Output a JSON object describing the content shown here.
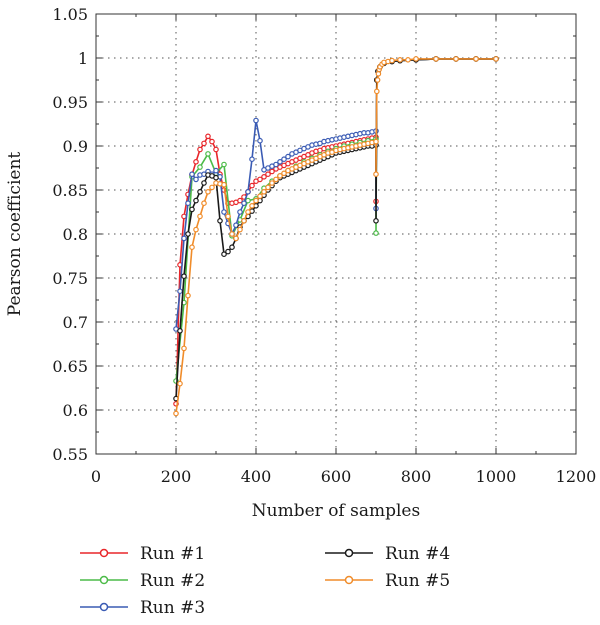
{
  "chart_data": {
    "type": "line",
    "xlabel": "Number of samples",
    "ylabel": "Pearson coefficient",
    "xlim": [
      0,
      1200
    ],
    "ylim": [
      0.55,
      1.05
    ],
    "xticks": [
      0,
      200,
      400,
      600,
      800,
      1000,
      1200
    ],
    "yticks": [
      0.55,
      0.6,
      0.65,
      0.7,
      0.75,
      0.8,
      0.85,
      0.9,
      0.95,
      1,
      1.05
    ],
    "grid": true,
    "legend_position": "bottom",
    "series": [
      {
        "name": "Run #1",
        "color": "#e8262a",
        "x": [
          200,
          210,
          220,
          230,
          240,
          250,
          260,
          270,
          280,
          290,
          300,
          310,
          320,
          330,
          340,
          350,
          360,
          370,
          380,
          390,
          400,
          410,
          420,
          430,
          440,
          450,
          460,
          470,
          480,
          490,
          500,
          510,
          520,
          530,
          540,
          550,
          560,
          570,
          580,
          590,
          600,
          610,
          620,
          630,
          640,
          650,
          660,
          670,
          680,
          690,
          700,
          700,
          702,
          705,
          710,
          720,
          740,
          760,
          800,
          850,
          900,
          950,
          1000
        ],
        "y": [
          0.607,
          0.765,
          0.82,
          0.845,
          0.867,
          0.882,
          0.896,
          0.903,
          0.911,
          0.905,
          0.896,
          0.868,
          0.85,
          0.835,
          0.835,
          0.836,
          0.838,
          0.842,
          0.848,
          0.855,
          0.86,
          0.862,
          0.865,
          0.868,
          0.871,
          0.874,
          0.876,
          0.878,
          0.88,
          0.882,
          0.884,
          0.886,
          0.888,
          0.89,
          0.892,
          0.894,
          0.895,
          0.897,
          0.898,
          0.899,
          0.9,
          0.901,
          0.902,
          0.903,
          0.904,
          0.905,
          0.906,
          0.907,
          0.908,
          0.909,
          0.91,
          0.837,
          0.975,
          0.985,
          0.99,
          0.994,
          0.996,
          0.997,
          0.998,
          0.999,
          0.999,
          0.999,
          0.999
        ]
      },
      {
        "name": "Run #2",
        "color": "#4cbb48",
        "x": [
          200,
          220,
          240,
          260,
          280,
          300,
          320,
          340,
          360,
          380,
          400,
          420,
          440,
          460,
          480,
          500,
          520,
          540,
          560,
          580,
          600,
          620,
          640,
          660,
          680,
          700,
          700,
          702,
          705,
          710,
          720,
          740,
          760,
          800,
          850,
          900,
          950,
          1000
        ],
        "y": [
          0.633,
          0.722,
          0.865,
          0.876,
          0.891,
          0.869,
          0.879,
          0.798,
          0.816,
          0.838,
          0.84,
          0.852,
          0.86,
          0.866,
          0.872,
          0.877,
          0.882,
          0.886,
          0.89,
          0.894,
          0.897,
          0.9,
          0.902,
          0.904,
          0.906,
          0.908,
          0.801,
          0.975,
          0.985,
          0.99,
          0.994,
          0.996,
          0.997,
          0.998,
          0.999,
          0.999,
          0.999,
          0.999
        ]
      },
      {
        "name": "Run #3",
        "color": "#3a5bb4",
        "x": [
          200,
          210,
          220,
          230,
          240,
          250,
          260,
          270,
          280,
          290,
          300,
          310,
          320,
          330,
          340,
          350,
          360,
          370,
          380,
          390,
          400,
          410,
          420,
          430,
          440,
          450,
          460,
          470,
          480,
          490,
          500,
          510,
          520,
          530,
          540,
          550,
          560,
          570,
          580,
          590,
          600,
          610,
          620,
          630,
          640,
          650,
          660,
          670,
          680,
          690,
          700,
          700,
          702,
          705,
          710,
          720,
          740,
          760,
          800,
          850,
          900,
          950,
          1000
        ],
        "y": [
          0.692,
          0.735,
          0.795,
          0.835,
          0.868,
          0.862,
          0.867,
          0.868,
          0.871,
          0.868,
          0.872,
          0.865,
          0.825,
          0.812,
          0.8,
          0.81,
          0.825,
          0.835,
          0.848,
          0.885,
          0.929,
          0.906,
          0.873,
          0.875,
          0.877,
          0.879,
          0.882,
          0.885,
          0.888,
          0.891,
          0.893,
          0.895,
          0.897,
          0.899,
          0.901,
          0.902,
          0.903,
          0.905,
          0.906,
          0.907,
          0.908,
          0.909,
          0.91,
          0.911,
          0.912,
          0.913,
          0.914,
          0.915,
          0.915,
          0.916,
          0.917,
          0.829,
          0.975,
          0.985,
          0.99,
          0.994,
          0.996,
          0.997,
          0.998,
          0.999,
          0.999,
          0.999,
          0.999
        ]
      },
      {
        "name": "Run #4",
        "color": "#1a1a1a",
        "x": [
          200,
          210,
          220,
          230,
          240,
          250,
          260,
          270,
          280,
          290,
          300,
          310,
          320,
          330,
          340,
          350,
          360,
          370,
          380,
          390,
          400,
          410,
          420,
          430,
          440,
          450,
          460,
          470,
          480,
          490,
          500,
          510,
          520,
          530,
          540,
          550,
          560,
          570,
          580,
          590,
          600,
          610,
          620,
          630,
          640,
          650,
          660,
          670,
          680,
          690,
          700,
          700,
          702,
          705,
          710,
          720,
          740,
          760,
          800,
          850,
          900,
          950,
          1000
        ],
        "y": [
          0.613,
          0.69,
          0.752,
          0.8,
          0.828,
          0.838,
          0.848,
          0.858,
          0.867,
          0.866,
          0.864,
          0.815,
          0.777,
          0.78,
          0.785,
          0.795,
          0.808,
          0.815,
          0.82,
          0.826,
          0.832,
          0.838,
          0.844,
          0.85,
          0.855,
          0.86,
          0.864,
          0.866,
          0.868,
          0.87,
          0.872,
          0.874,
          0.876,
          0.878,
          0.88,
          0.882,
          0.884,
          0.886,
          0.888,
          0.89,
          0.892,
          0.893,
          0.894,
          0.895,
          0.896,
          0.897,
          0.898,
          0.899,
          0.9,
          0.9,
          0.901,
          0.815,
          0.975,
          0.985,
          0.99,
          0.994,
          0.996,
          0.997,
          0.998,
          0.999,
          0.999,
          0.999,
          0.999
        ]
      },
      {
        "name": "Run #5",
        "color": "#f08c2a",
        "x": [
          200,
          210,
          220,
          230,
          240,
          250,
          260,
          270,
          280,
          290,
          300,
          310,
          320,
          330,
          340,
          350,
          360,
          370,
          380,
          390,
          400,
          410,
          420,
          430,
          440,
          450,
          460,
          470,
          480,
          490,
          500,
          510,
          520,
          530,
          540,
          550,
          560,
          570,
          580,
          590,
          600,
          610,
          620,
          630,
          640,
          650,
          660,
          670,
          680,
          690,
          700,
          700,
          702,
          704,
          706,
          708,
          710,
          715,
          720,
          730,
          740,
          760,
          780,
          800,
          850,
          900,
          950,
          1000
        ],
        "y": [
          0.596,
          0.63,
          0.67,
          0.73,
          0.785,
          0.805,
          0.82,
          0.835,
          0.848,
          0.853,
          0.858,
          0.857,
          0.856,
          0.82,
          0.8,
          0.795,
          0.805,
          0.815,
          0.825,
          0.832,
          0.838,
          0.843,
          0.848,
          0.853,
          0.858,
          0.862,
          0.866,
          0.869,
          0.872,
          0.874,
          0.876,
          0.878,
          0.88,
          0.882,
          0.884,
          0.886,
          0.888,
          0.89,
          0.892,
          0.893,
          0.895,
          0.896,
          0.897,
          0.898,
          0.899,
          0.9,
          0.901,
          0.902,
          0.903,
          0.904,
          0.905,
          0.868,
          0.962,
          0.975,
          0.982,
          0.987,
          0.99,
          0.993,
          0.995,
          0.996,
          0.997,
          0.998,
          0.998,
          0.999,
          0.999,
          0.999,
          0.999,
          0.999
        ]
      }
    ]
  }
}
